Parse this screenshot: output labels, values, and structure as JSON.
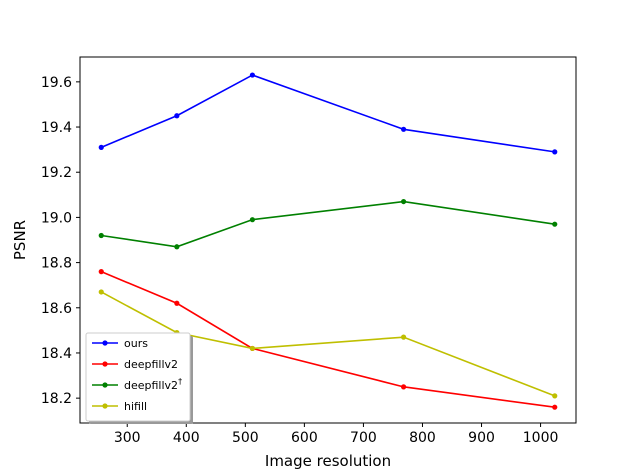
{
  "chart_data": {
    "type": "line",
    "xlabel": "Image resolution",
    "ylabel": "PSNR",
    "xlim": [
      220,
      1060
    ],
    "ylim": [
      18.09,
      19.71
    ],
    "xticks": [
      300,
      400,
      500,
      600,
      700,
      800,
      900,
      1000
    ],
    "yticks": [
      18.2,
      18.4,
      18.6,
      18.8,
      19.0,
      19.2,
      19.4,
      19.6
    ],
    "ytick_labels": [
      "18.2",
      "18.4",
      "18.6",
      "18.8",
      "19.0",
      "19.2",
      "19.4",
      "19.6"
    ],
    "grid": false,
    "legend_position": "lower-left",
    "x": [
      256,
      384,
      512,
      768,
      1024
    ],
    "series": [
      {
        "name": "ours",
        "name_sup": "",
        "color": "#0000ff",
        "values": [
          19.31,
          19.45,
          19.63,
          19.39,
          19.29
        ]
      },
      {
        "name": "deepfillv2",
        "name_sup": "",
        "color": "#ff0000",
        "values": [
          18.76,
          18.62,
          18.42,
          18.25,
          18.16
        ]
      },
      {
        "name": "deepfillv2",
        "name_sup": "†",
        "color": "#008000",
        "values": [
          18.92,
          18.87,
          18.99,
          19.07,
          18.97
        ]
      },
      {
        "name": "hifill",
        "name_sup": "",
        "color": "#bfbf00",
        "values": [
          18.67,
          18.49,
          18.42,
          18.47,
          18.21
        ]
      }
    ]
  }
}
